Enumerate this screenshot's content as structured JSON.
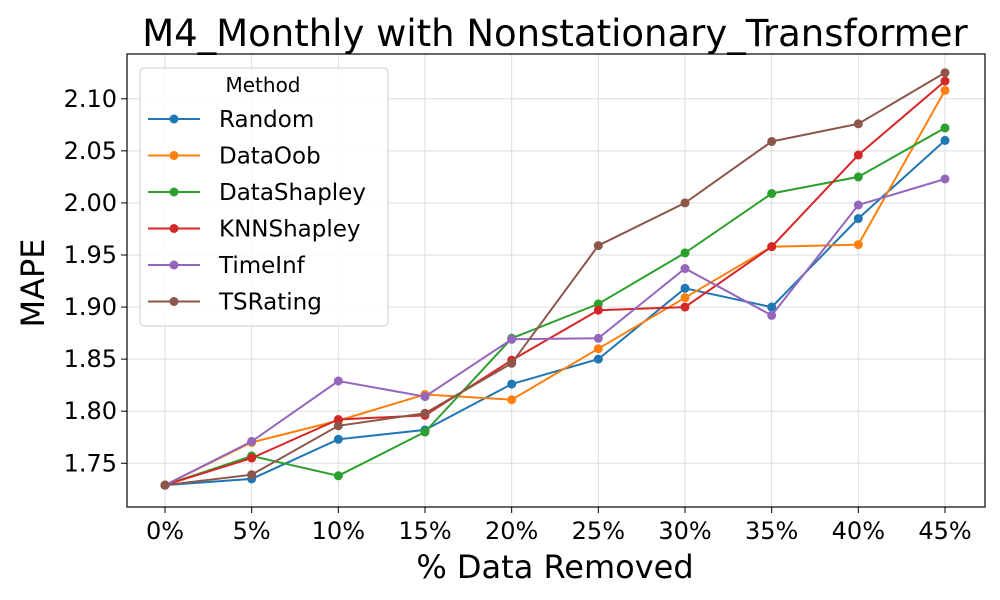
{
  "chart_data": {
    "type": "line",
    "title": "M4_Monthly with Nonstationary_Transformer",
    "xlabel": "% Data Removed",
    "ylabel": "MAPE",
    "categories": [
      "0%",
      "5%",
      "10%",
      "15%",
      "20%",
      "25%",
      "30%",
      "35%",
      "40%",
      "45%"
    ],
    "ylim": [
      1.708,
      2.143
    ],
    "yticks": [
      1.75,
      1.8,
      1.85,
      1.9,
      1.95,
      2.0,
      2.05,
      2.1
    ],
    "ytick_labels": [
      "1.75",
      "1.80",
      "1.85",
      "1.90",
      "1.95",
      "2.00",
      "2.05",
      "2.10"
    ],
    "grid": true,
    "legend": {
      "title": "Method",
      "placement": "top-left"
    },
    "series": [
      {
        "name": "Random",
        "color": "#1f77b4",
        "values": [
          1.729,
          1.735,
          1.773,
          1.782,
          1.826,
          1.85,
          1.918,
          1.9,
          1.985,
          2.06
        ]
      },
      {
        "name": "DataOob",
        "color": "#ff7f0e",
        "values": [
          1.729,
          1.77,
          1.791,
          1.816,
          1.811,
          1.86,
          1.909,
          1.958,
          1.96,
          2.108
        ]
      },
      {
        "name": "DataShapley",
        "color": "#2ca02c",
        "values": [
          1.729,
          1.757,
          1.738,
          1.78,
          1.87,
          1.903,
          1.952,
          2.009,
          2.025,
          2.072
        ]
      },
      {
        "name": "KNNShapley",
        "color": "#d62728",
        "values": [
          1.729,
          1.755,
          1.792,
          1.796,
          1.849,
          1.897,
          1.9,
          1.958,
          2.046,
          2.117
        ]
      },
      {
        "name": "TimeInf",
        "color": "#9467bd",
        "values": [
          1.729,
          1.771,
          1.829,
          1.814,
          1.869,
          1.87,
          1.937,
          1.892,
          1.998,
          2.023
        ]
      },
      {
        "name": "TSRating",
        "color": "#8c564b",
        "values": [
          1.729,
          1.739,
          1.786,
          1.798,
          1.846,
          1.959,
          2.0,
          2.059,
          2.076,
          2.125
        ]
      }
    ]
  }
}
